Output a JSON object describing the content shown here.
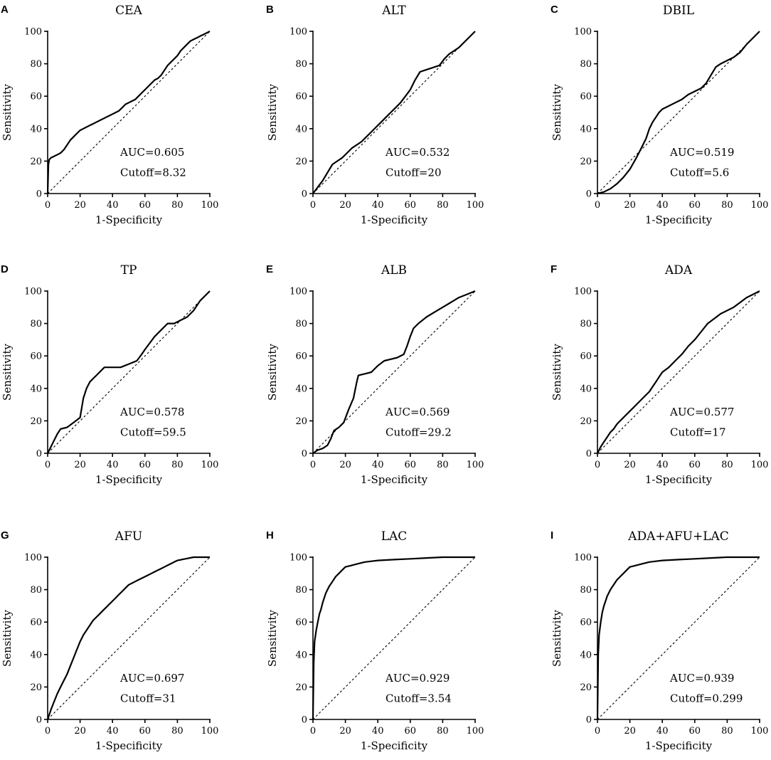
{
  "chart_data": [
    {
      "type": "line",
      "panel": "A",
      "title": "CEA",
      "xlabel": "1-Specificity",
      "ylabel": "Sensitivity",
      "xlim": [
        0,
        100
      ],
      "ylim": [
        0,
        100
      ],
      "ticks": [
        "0",
        "20",
        "40",
        "60",
        "80",
        "100"
      ],
      "auc_label": "AUC=0.605",
      "cutoff_label": "Cutoff=8.32",
      "series": [
        {
          "name": "ROC",
          "x": [
            0,
            0.5,
            1,
            2,
            4,
            6,
            8,
            10,
            12,
            14,
            16,
            18,
            20,
            22,
            24,
            26,
            28,
            30,
            32,
            34,
            36,
            38,
            40,
            42,
            44,
            46,
            48,
            50,
            52,
            54,
            56,
            58,
            60,
            62,
            64,
            66,
            68,
            70,
            72,
            74,
            76,
            78,
            80,
            82,
            84,
            86,
            88,
            90,
            92,
            94,
            96,
            98,
            100
          ],
          "y": [
            0,
            18,
            21,
            22,
            23,
            24,
            25,
            27,
            30,
            33,
            35,
            37,
            39,
            40,
            41,
            42,
            43,
            44,
            45,
            46,
            47,
            48,
            49,
            50,
            51,
            53,
            55,
            56,
            57,
            58,
            60,
            62,
            64,
            66,
            68,
            70,
            71,
            73,
            76,
            79,
            81,
            83,
            85,
            88,
            90,
            92,
            94,
            95,
            96,
            97,
            98,
            99,
            100
          ]
        }
      ]
    },
    {
      "type": "line",
      "panel": "B",
      "title": "ALT",
      "xlabel": "1-Specificity",
      "ylabel": "Sensitivity",
      "xlim": [
        0,
        100
      ],
      "ylim": [
        0,
        100
      ],
      "ticks": [
        "0",
        "20",
        "40",
        "60",
        "80",
        "100"
      ],
      "auc_label": "AUC=0.532",
      "cutoff_label": "Cutoff=20",
      "series": [
        {
          "name": "ROC",
          "x": [
            0,
            3,
            6,
            9,
            12,
            15,
            18,
            21,
            24,
            27,
            30,
            33,
            36,
            39,
            42,
            45,
            48,
            51,
            54,
            57,
            60,
            63,
            66,
            69,
            72,
            75,
            78,
            81,
            84,
            87,
            90,
            93,
            96,
            100
          ],
          "y": [
            0,
            4,
            8,
            13,
            18,
            20,
            22,
            25,
            28,
            30,
            32,
            35,
            38,
            41,
            44,
            47,
            50,
            53,
            56,
            60,
            64,
            70,
            75,
            76,
            77,
            78,
            79,
            83,
            86,
            88,
            90,
            93,
            96,
            100
          ]
        }
      ]
    },
    {
      "type": "line",
      "panel": "C",
      "title": "DBIL",
      "xlabel": "1-Specificity",
      "ylabel": "Sensitivity",
      "xlim": [
        0,
        100
      ],
      "ylim": [
        0,
        100
      ],
      "ticks": [
        "0",
        "20",
        "40",
        "60",
        "80",
        "100"
      ],
      "auc_label": "AUC=0.519",
      "cutoff_label": "Cutoff=5.6",
      "series": [
        {
          "name": "ROC",
          "x": [
            0,
            4,
            8,
            12,
            16,
            20,
            24,
            27,
            30,
            32,
            34,
            36,
            38,
            40,
            44,
            48,
            52,
            56,
            60,
            64,
            67,
            70,
            73,
            76,
            80,
            84,
            88,
            92,
            96,
            100
          ],
          "y": [
            0,
            1,
            3,
            6,
            10,
            15,
            22,
            28,
            34,
            40,
            44,
            47,
            50,
            52,
            54,
            56,
            58,
            61,
            63,
            65,
            68,
            73,
            78,
            80,
            82,
            84,
            87,
            92,
            96,
            100
          ]
        }
      ]
    },
    {
      "type": "line",
      "panel": "D",
      "title": "TP",
      "xlabel": "1-Specificity",
      "ylabel": "Sensitivity",
      "xlim": [
        0,
        100
      ],
      "ylim": [
        0,
        100
      ],
      "ticks": [
        "0",
        "20",
        "40",
        "60",
        "80",
        "100"
      ],
      "auc_label": "AUC=0.578",
      "cutoff_label": "Cutoff=59.5",
      "series": [
        {
          "name": "ROC",
          "x": [
            0,
            2,
            4,
            6,
            8,
            12,
            16,
            20,
            22,
            24,
            26,
            28,
            30,
            32,
            35,
            40,
            45,
            50,
            55,
            58,
            60,
            63,
            66,
            70,
            74,
            78,
            82,
            86,
            90,
            94,
            100
          ],
          "y": [
            0,
            4,
            8,
            12,
            15,
            16,
            19,
            22,
            34,
            40,
            44,
            46,
            48,
            50,
            53,
            53,
            53,
            55,
            57,
            61,
            64,
            68,
            72,
            76,
            80,
            80,
            82,
            84,
            88,
            94,
            100
          ]
        }
      ]
    },
    {
      "type": "line",
      "panel": "E",
      "title": "ALB",
      "xlabel": "1-Specificity",
      "ylabel": "Sensitivity",
      "xlim": [
        0,
        100
      ],
      "ylim": [
        0,
        100
      ],
      "ticks": [
        "0",
        "20",
        "40",
        "60",
        "80",
        "100"
      ],
      "auc_label": "AUC=0.569",
      "cutoff_label": "Cutoff=29.2",
      "series": [
        {
          "name": "ROC",
          "x": [
            0,
            3,
            6,
            9,
            11,
            13,
            16,
            19,
            22,
            25,
            27,
            28,
            32,
            36,
            40,
            44,
            48,
            52,
            56,
            58,
            60,
            62,
            65,
            70,
            75,
            80,
            85,
            90,
            95,
            100
          ],
          "y": [
            0,
            2,
            3,
            5,
            9,
            14,
            16,
            19,
            27,
            34,
            44,
            48,
            49,
            50,
            54,
            57,
            58,
            59,
            61,
            66,
            72,
            77,
            80,
            84,
            87,
            90,
            93,
            96,
            98,
            100
          ]
        }
      ]
    },
    {
      "type": "line",
      "panel": "F",
      "title": "ADA",
      "xlabel": "1-Specificity",
      "ylabel": "Sensitivity",
      "xlim": [
        0,
        100
      ],
      "ylim": [
        0,
        100
      ],
      "ticks": [
        "0",
        "20",
        "40",
        "60",
        "80",
        "100"
      ],
      "auc_label": "AUC=0.577",
      "cutoff_label": "Cutoff=17",
      "series": [
        {
          "name": "ROC",
          "x": [
            0,
            2,
            4,
            6,
            8,
            10,
            12,
            14,
            16,
            18,
            20,
            22,
            24,
            26,
            28,
            30,
            32,
            34,
            36,
            38,
            40,
            44,
            48,
            52,
            56,
            60,
            64,
            68,
            72,
            76,
            80,
            84,
            88,
            92,
            96,
            100
          ],
          "y": [
            0,
            4,
            7,
            10,
            13,
            15,
            18,
            20,
            22,
            24,
            26,
            28,
            30,
            32,
            34,
            36,
            38,
            41,
            44,
            47,
            50,
            53,
            57,
            61,
            66,
            70,
            75,
            80,
            83,
            86,
            88,
            90,
            93,
            96,
            98,
            100
          ]
        }
      ]
    },
    {
      "type": "line",
      "panel": "G",
      "title": "AFU",
      "xlabel": "1-Specificity",
      "ylabel": "Sensitivity",
      "xlim": [
        0,
        100
      ],
      "ylim": [
        0,
        100
      ],
      "ticks": [
        "0",
        "20",
        "40",
        "60",
        "80",
        "100"
      ],
      "auc_label": "AUC=0.697",
      "cutoff_label": "Cutoff=31",
      "series": [
        {
          "name": "ROC",
          "x": [
            0,
            2,
            4,
            6,
            8,
            10,
            12,
            14,
            16,
            18,
            20,
            22,
            24,
            26,
            28,
            30,
            32,
            34,
            36,
            38,
            40,
            42,
            44,
            46,
            48,
            50,
            52,
            54,
            56,
            58,
            60,
            62,
            64,
            66,
            68,
            70,
            72,
            74,
            76,
            78,
            80,
            85,
            90,
            95,
            100
          ],
          "y": [
            0,
            6,
            11,
            16,
            20,
            24,
            28,
            33,
            38,
            43,
            48,
            52,
            55,
            58,
            61,
            63,
            65,
            67,
            69,
            71,
            73,
            75,
            77,
            79,
            81,
            83,
            84,
            85,
            86,
            87,
            88,
            89,
            90,
            91,
            92,
            93,
            94,
            95,
            96,
            97,
            98,
            99,
            100,
            100,
            100
          ]
        }
      ]
    },
    {
      "type": "line",
      "panel": "H",
      "title": "LAC",
      "xlabel": "1-Specificity",
      "ylabel": "Sensitivity",
      "xlim": [
        0,
        100
      ],
      "ylim": [
        0,
        100
      ],
      "ticks": [
        "0",
        "20",
        "40",
        "60",
        "80",
        "100"
      ],
      "auc_label": "AUC=0.929",
      "cutoff_label": "Cutoff=3.54",
      "series": [
        {
          "name": "ROC",
          "x": [
            0,
            0.5,
            1,
            2,
            3,
            4,
            5,
            6,
            8,
            10,
            12,
            14,
            16,
            18,
            20,
            24,
            28,
            32,
            36,
            40,
            50,
            60,
            70,
            80,
            90,
            100
          ],
          "y": [
            0,
            35,
            48,
            55,
            60,
            65,
            68,
            72,
            78,
            82,
            85,
            88,
            90,
            92,
            94,
            95,
            96,
            97,
            97.5,
            98,
            98.5,
            99,
            99.5,
            100,
            100,
            100
          ]
        }
      ]
    },
    {
      "type": "line",
      "panel": "I",
      "title": "ADA+AFU+LAC",
      "xlabel": "1-Specificity",
      "ylabel": "Sensitivity",
      "xlim": [
        0,
        100
      ],
      "ylim": [
        0,
        100
      ],
      "ticks": [
        "0",
        "20",
        "40",
        "60",
        "80",
        "100"
      ],
      "auc_label": "AUC=0.939",
      "cutoff_label": "Cutoff=0.299",
      "series": [
        {
          "name": "ROC",
          "x": [
            0,
            0.5,
            1,
            2,
            3,
            4,
            5,
            6,
            8,
            10,
            12,
            14,
            16,
            18,
            20,
            24,
            28,
            32,
            36,
            40,
            50,
            60,
            70,
            80,
            90,
            100
          ],
          "y": [
            0,
            40,
            52,
            60,
            66,
            70,
            73,
            76,
            80,
            83,
            86,
            88,
            90,
            92,
            94,
            95,
            96,
            97,
            97.5,
            98,
            98.5,
            99,
            99.5,
            100,
            100,
            100
          ]
        }
      ]
    }
  ]
}
